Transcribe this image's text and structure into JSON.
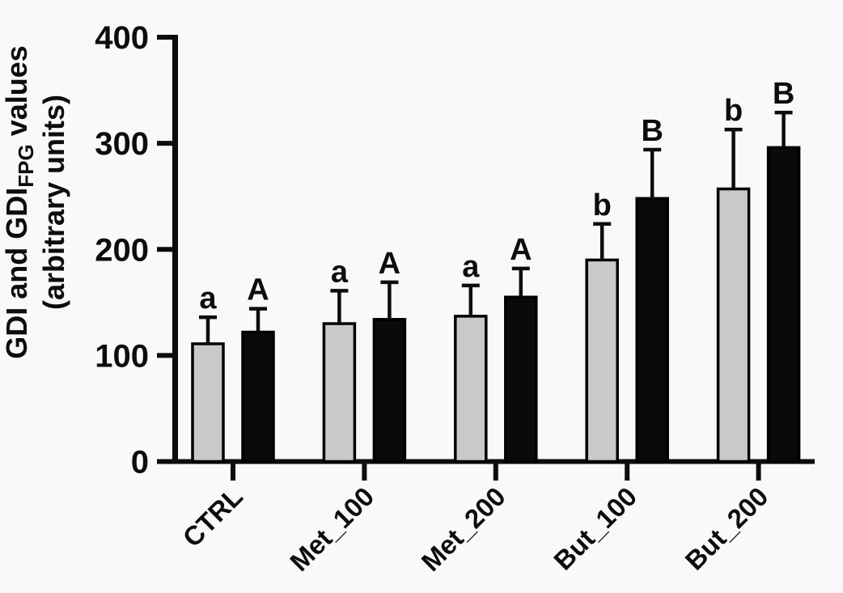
{
  "chart_data": {
    "type": "bar",
    "title": "",
    "ylabel_line1_parts": [
      {
        "text": "GDI and GDI",
        "sub": false
      },
      {
        "text": "FPG",
        "sub": true
      },
      {
        "text": " values",
        "sub": false
      }
    ],
    "ylabel_line2": "(arbitrary units)",
    "xlabel": "",
    "categories": [
      "CTRL",
      "Met_100",
      "Met_200",
      "But_100",
      "But_200"
    ],
    "series": [
      {
        "name": "GDI",
        "color": "#c9c9c9",
        "values": [
          111,
          130,
          137,
          190,
          257
        ],
        "errors_sd": [
          25,
          31,
          29,
          34,
          56
        ],
        "sig_letters": [
          "a",
          "a",
          "a",
          "b",
          "b"
        ]
      },
      {
        "name": "GDI_FPG",
        "color": "#0a0a0a",
        "values": [
          122,
          134,
          155,
          248,
          296
        ],
        "errors_sd": [
          22,
          35,
          27,
          46,
          33
        ],
        "sig_letters": [
          "A",
          "A",
          "A",
          "B",
          "B"
        ]
      }
    ],
    "ylim": [
      0,
      400
    ],
    "yticks": [
      0,
      100,
      200,
      300,
      400
    ],
    "ytick_labels": [
      "0",
      "100",
      "200",
      "300",
      "400"
    ],
    "grid": "off",
    "legend": "none",
    "error_bar_direction": "up",
    "axis_color": "#0d0d0d",
    "bar_outline_color": "#000000",
    "background_color": "#f9f9fb"
  }
}
